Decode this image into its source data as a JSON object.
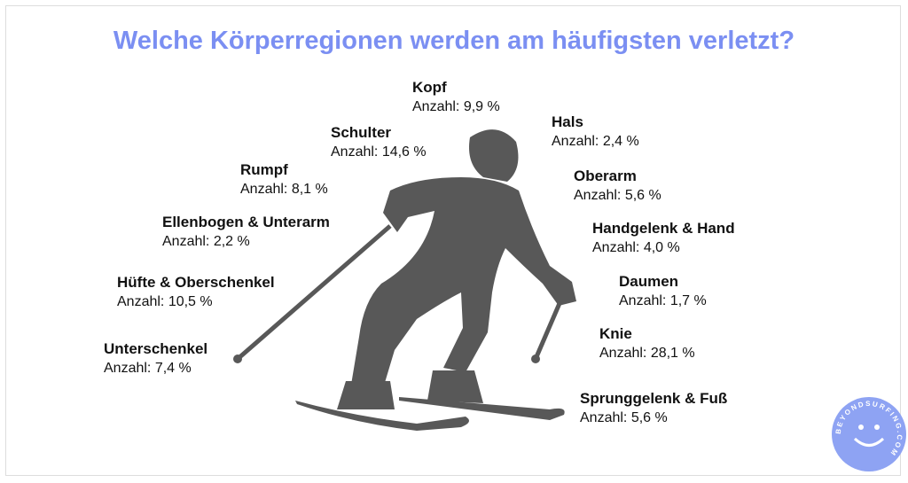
{
  "title": "Welche Körperregionen werden am häufigsten verletzt?",
  "regions": [
    {
      "name": "Kopf",
      "value": "Anzahl: 9,9 %"
    },
    {
      "name": "Hals",
      "value": "Anzahl: 2,4 %"
    },
    {
      "name": "Schulter",
      "value": "Anzahl: 14,6 %"
    },
    {
      "name": "Oberarm",
      "value": "Anzahl: 5,6 %"
    },
    {
      "name": "Rumpf",
      "value": "Anzahl: 8,1 %"
    },
    {
      "name": "Handgelenk & Hand",
      "value": "Anzahl: 4,0 %"
    },
    {
      "name": "Ellenbogen & Unterarm",
      "value": "Anzahl: 2,2 %"
    },
    {
      "name": "Daumen",
      "value": "Anzahl: 1,7 %"
    },
    {
      "name": "Hüfte & Oberschenkel",
      "value": "Anzahl: 10,5 %"
    },
    {
      "name": "Knie",
      "value": "Anzahl: 28,1 %"
    },
    {
      "name": "Unterschenkel",
      "value": "Anzahl: 7,4 %"
    },
    {
      "name": "Sprunggelenk & Fuß",
      "value": "Anzahl: 5,6 %"
    }
  ],
  "logo": "BEYONDSURFING.COM"
}
